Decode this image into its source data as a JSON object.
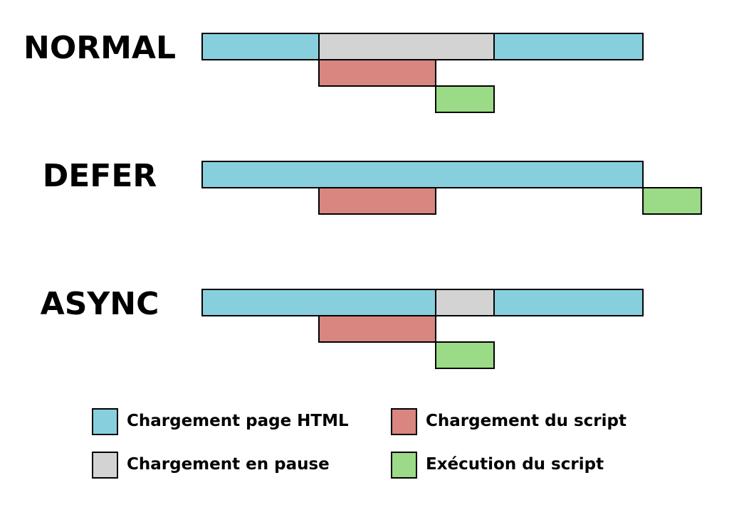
{
  "colors": {
    "html": "#87cfdd",
    "pause": "#d3d3d3",
    "script_load": "#d98580",
    "script_exec": "#9bda86"
  },
  "rows": [
    {
      "label": "NORMAL",
      "segments": [
        {
          "type": "html",
          "lane": 0,
          "start": 0,
          "end": 4
        },
        {
          "type": "pause",
          "lane": 0,
          "start": 4,
          "end": 10
        },
        {
          "type": "html",
          "lane": 0,
          "start": 10,
          "end": 15.1
        },
        {
          "type": "script_load",
          "lane": 1,
          "start": 4,
          "end": 8
        },
        {
          "type": "script_exec",
          "lane": 2,
          "start": 8,
          "end": 10
        }
      ]
    },
    {
      "label": "DEFER",
      "segments": [
        {
          "type": "html",
          "lane": 0,
          "start": 0,
          "end": 15.1
        },
        {
          "type": "script_load",
          "lane": 1,
          "start": 4,
          "end": 8
        },
        {
          "type": "script_exec",
          "lane": 1,
          "start": 15.1,
          "end": 17.1
        }
      ]
    },
    {
      "label": "ASYNC",
      "segments": [
        {
          "type": "html",
          "lane": 0,
          "start": 0,
          "end": 8
        },
        {
          "type": "pause",
          "lane": 0,
          "start": 8,
          "end": 10
        },
        {
          "type": "html",
          "lane": 0,
          "start": 10,
          "end": 15.1
        },
        {
          "type": "script_load",
          "lane": 1,
          "start": 4,
          "end": 8
        },
        {
          "type": "script_exec",
          "lane": 2,
          "start": 8,
          "end": 10
        }
      ]
    }
  ],
  "legend": [
    {
      "type": "html",
      "label": "Chargement page HTML"
    },
    {
      "type": "script_load",
      "label": "Chargement du script"
    },
    {
      "type": "pause",
      "label": "Chargement en pause"
    },
    {
      "type": "script_exec",
      "label": "Exécution du script"
    }
  ]
}
